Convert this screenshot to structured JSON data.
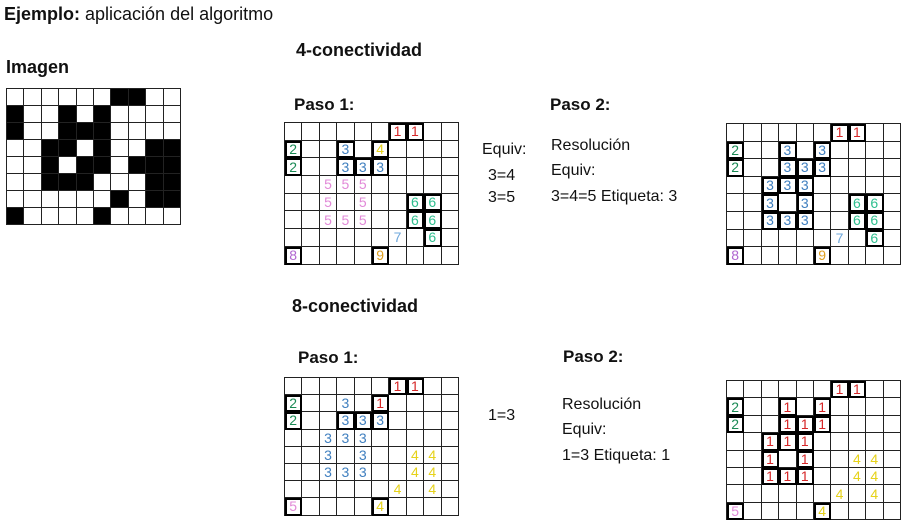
{
  "title": {
    "bold": "Ejemplo:",
    "rest": " aplicación del algoritmo"
  },
  "image_label": "Imagen",
  "section4": {
    "heading": "4-conectividad",
    "paso1": "Paso 1:",
    "paso2": "Paso 2:",
    "equiv_label": "Equiv:",
    "equiv_lines": [
      "3=4",
      "3=5"
    ],
    "res_line1": "Resolución",
    "res_line2": "Equiv:",
    "res_line3": "3=4=5   Etiqueta: 3"
  },
  "section8": {
    "heading": "8-conectividad",
    "paso1": "Paso 1:",
    "paso2": "Paso 2:",
    "equiv": "1=3",
    "res_line1": "Resolución",
    "res_line2": "Equiv:",
    "res_line3": "1=3   Etiqueta: 1"
  },
  "colors": {
    "1": "#d62728",
    "2": "#1a8a55",
    "3": "#3f7fbf",
    "4": "#e6d21a",
    "5": "#e28ad8",
    "6": "#2fbf8f",
    "7": "#6fa8dc",
    "8": "#b065d0",
    "9": "#e0a020"
  },
  "grids": {
    "binary": {
      "rows": 8,
      "cols": 10,
      "cells": [
        [
          0,
          0,
          0,
          0,
          0,
          0,
          1,
          1,
          0,
          0
        ],
        [
          1,
          0,
          0,
          1,
          0,
          1,
          0,
          0,
          0,
          0
        ],
        [
          1,
          0,
          0,
          1,
          1,
          1,
          0,
          0,
          0,
          0
        ],
        [
          0,
          0,
          1,
          1,
          0,
          1,
          0,
          0,
          1,
          1
        ],
        [
          0,
          0,
          1,
          0,
          1,
          1,
          0,
          1,
          1,
          1
        ],
        [
          0,
          0,
          1,
          1,
          1,
          0,
          0,
          0,
          1,
          1
        ],
        [
          0,
          0,
          0,
          0,
          0,
          0,
          1,
          0,
          1,
          1
        ],
        [
          1,
          0,
          0,
          0,
          0,
          1,
          0,
          0,
          0,
          0
        ]
      ]
    },
    "c4_step1": {
      "rows": 8,
      "cols": 10,
      "cells": [
        [
          0,
          0,
          0,
          0,
          0,
          0,
          1,
          1,
          0,
          0
        ],
        [
          2,
          0,
          0,
          3,
          0,
          4,
          0,
          0,
          0,
          0
        ],
        [
          2,
          0,
          0,
          3,
          3,
          3,
          0,
          0,
          0,
          0
        ],
        [
          0,
          0,
          5,
          5,
          5,
          0,
          0,
          0,
          0,
          0
        ],
        [
          0,
          0,
          5,
          0,
          5,
          0,
          0,
          6,
          6,
          0
        ],
        [
          0,
          0,
          5,
          5,
          5,
          0,
          0,
          6,
          6,
          0
        ],
        [
          0,
          0,
          0,
          0,
          0,
          0,
          7,
          0,
          6,
          0
        ],
        [
          8,
          0,
          0,
          0,
          0,
          9,
          0,
          0,
          0,
          0
        ]
      ]
    },
    "c4_step2": {
      "rows": 8,
      "cols": 10,
      "cells": [
        [
          0,
          0,
          0,
          0,
          0,
          0,
          1,
          1,
          0,
          0
        ],
        [
          2,
          0,
          0,
          3,
          0,
          3,
          0,
          0,
          0,
          0
        ],
        [
          2,
          0,
          0,
          3,
          3,
          3,
          0,
          0,
          0,
          0
        ],
        [
          0,
          0,
          3,
          3,
          3,
          0,
          0,
          0,
          0,
          0
        ],
        [
          0,
          0,
          3,
          0,
          3,
          0,
          0,
          6,
          6,
          0
        ],
        [
          0,
          0,
          3,
          3,
          3,
          0,
          0,
          6,
          6,
          0
        ],
        [
          0,
          0,
          0,
          0,
          0,
          0,
          7,
          0,
          6,
          0
        ],
        [
          8,
          0,
          0,
          0,
          0,
          9,
          0,
          0,
          0,
          0
        ]
      ]
    },
    "c8_step1": {
      "rows": 8,
      "cols": 10,
      "cells": [
        [
          0,
          0,
          0,
          0,
          0,
          0,
          1,
          1,
          0,
          0
        ],
        [
          2,
          0,
          0,
          3,
          0,
          1,
          0,
          0,
          0,
          0
        ],
        [
          2,
          0,
          0,
          3,
          3,
          3,
          0,
          0,
          0,
          0
        ],
        [
          0,
          0,
          3,
          3,
          3,
          0,
          0,
          0,
          0,
          0
        ],
        [
          0,
          0,
          3,
          0,
          3,
          0,
          0,
          4,
          4,
          0
        ],
        [
          0,
          0,
          3,
          3,
          3,
          0,
          0,
          4,
          4,
          0
        ],
        [
          0,
          0,
          0,
          0,
          0,
          0,
          4,
          0,
          4,
          0
        ],
        [
          5,
          0,
          0,
          0,
          0,
          4,
          0,
          0,
          0,
          0
        ]
      ]
    },
    "c8_step2": {
      "rows": 8,
      "cols": 10,
      "cells": [
        [
          0,
          0,
          0,
          0,
          0,
          0,
          1,
          1,
          0,
          0
        ],
        [
          2,
          0,
          0,
          1,
          0,
          1,
          0,
          0,
          0,
          0
        ],
        [
          2,
          0,
          0,
          1,
          1,
          1,
          0,
          0,
          0,
          0
        ],
        [
          0,
          0,
          1,
          1,
          1,
          0,
          0,
          0,
          0,
          0
        ],
        [
          0,
          0,
          1,
          0,
          1,
          0,
          0,
          4,
          4,
          0
        ],
        [
          0,
          0,
          1,
          1,
          1,
          0,
          0,
          4,
          4,
          0
        ],
        [
          0,
          0,
          0,
          0,
          0,
          0,
          4,
          0,
          4,
          0
        ],
        [
          5,
          0,
          0,
          0,
          0,
          4,
          0,
          0,
          0,
          0
        ]
      ]
    }
  },
  "marks": {
    "c4_step1": [
      [
        0,
        6
      ],
      [
        0,
        7
      ],
      [
        1,
        0
      ],
      [
        2,
        0
      ],
      [
        1,
        3
      ],
      [
        1,
        5
      ],
      [
        2,
        3
      ],
      [
        2,
        4
      ],
      [
        2,
        5
      ],
      [
        4,
        7
      ],
      [
        4,
        8
      ],
      [
        5,
        7
      ],
      [
        5,
        8
      ],
      [
        6,
        8
      ],
      [
        7,
        0
      ],
      [
        7,
        5
      ]
    ],
    "c4_step2": [
      [
        0,
        6
      ],
      [
        0,
        7
      ],
      [
        1,
        0
      ],
      [
        2,
        0
      ],
      [
        1,
        3
      ],
      [
        1,
        5
      ],
      [
        2,
        3
      ],
      [
        2,
        4
      ],
      [
        2,
        5
      ],
      [
        3,
        2
      ],
      [
        3,
        3
      ],
      [
        3,
        4
      ],
      [
        4,
        2
      ],
      [
        4,
        4
      ],
      [
        5,
        2
      ],
      [
        5,
        3
      ],
      [
        5,
        4
      ],
      [
        4,
        7
      ],
      [
        4,
        8
      ],
      [
        5,
        7
      ],
      [
        5,
        8
      ],
      [
        6,
        8
      ],
      [
        7,
        0
      ],
      [
        7,
        5
      ]
    ],
    "c8_step1": [
      [
        0,
        6
      ],
      [
        0,
        7
      ],
      [
        1,
        0
      ],
      [
        2,
        0
      ],
      [
        1,
        5
      ],
      [
        2,
        3
      ],
      [
        2,
        4
      ],
      [
        2,
        5
      ],
      [
        7,
        0
      ],
      [
        7,
        5
      ]
    ],
    "c8_step2": [
      [
        0,
        6
      ],
      [
        0,
        7
      ],
      [
        1,
        0
      ],
      [
        2,
        0
      ],
      [
        1,
        3
      ],
      [
        1,
        5
      ],
      [
        2,
        3
      ],
      [
        2,
        4
      ],
      [
        2,
        5
      ],
      [
        3,
        2
      ],
      [
        3,
        3
      ],
      [
        3,
        4
      ],
      [
        4,
        2
      ],
      [
        4,
        4
      ],
      [
        5,
        2
      ],
      [
        5,
        3
      ],
      [
        5,
        4
      ],
      [
        7,
        0
      ],
      [
        7,
        5
      ]
    ]
  }
}
